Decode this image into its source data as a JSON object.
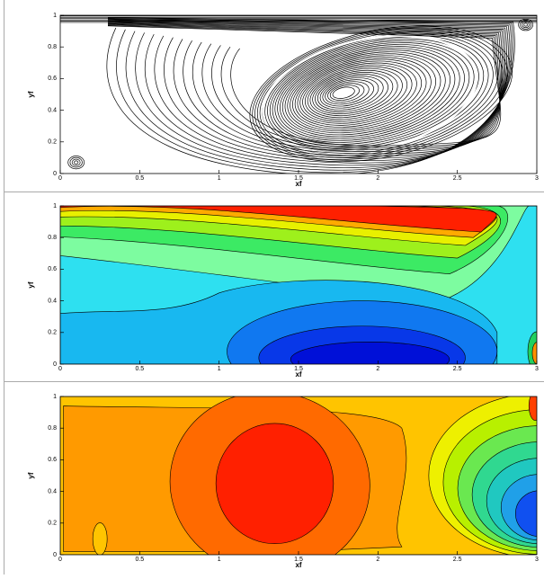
{
  "chart_data": [
    {
      "type": "streamline",
      "xlabel": "xf",
      "ylabel": "yf",
      "xlim": [
        0,
        3
      ],
      "ylim": [
        0,
        1
      ],
      "xticks": [
        0,
        0.5,
        1,
        1.5,
        2,
        2.5,
        3
      ],
      "yticks": [
        0,
        0.2,
        0.4,
        0.6,
        0.8,
        1
      ]
    },
    {
      "type": "contour-u",
      "xlabel": "xf",
      "ylabel": "yf",
      "xlim": [
        0,
        3
      ],
      "ylim": [
        0,
        1
      ],
      "xticks": [
        0,
        0.5,
        1,
        1.5,
        2,
        2.5,
        3
      ],
      "yticks": [
        0,
        0.2,
        0.4,
        0.6,
        0.8,
        1
      ]
    },
    {
      "type": "contour-p",
      "xlabel": "xf",
      "ylabel": "yf",
      "xlim": [
        0,
        3
      ],
      "ylim": [
        0,
        1
      ],
      "xticks": [
        0,
        0.5,
        1,
        1.5,
        2,
        2.5,
        3
      ],
      "yticks": [
        0,
        0.2,
        0.4,
        0.6,
        0.8,
        1
      ]
    }
  ]
}
